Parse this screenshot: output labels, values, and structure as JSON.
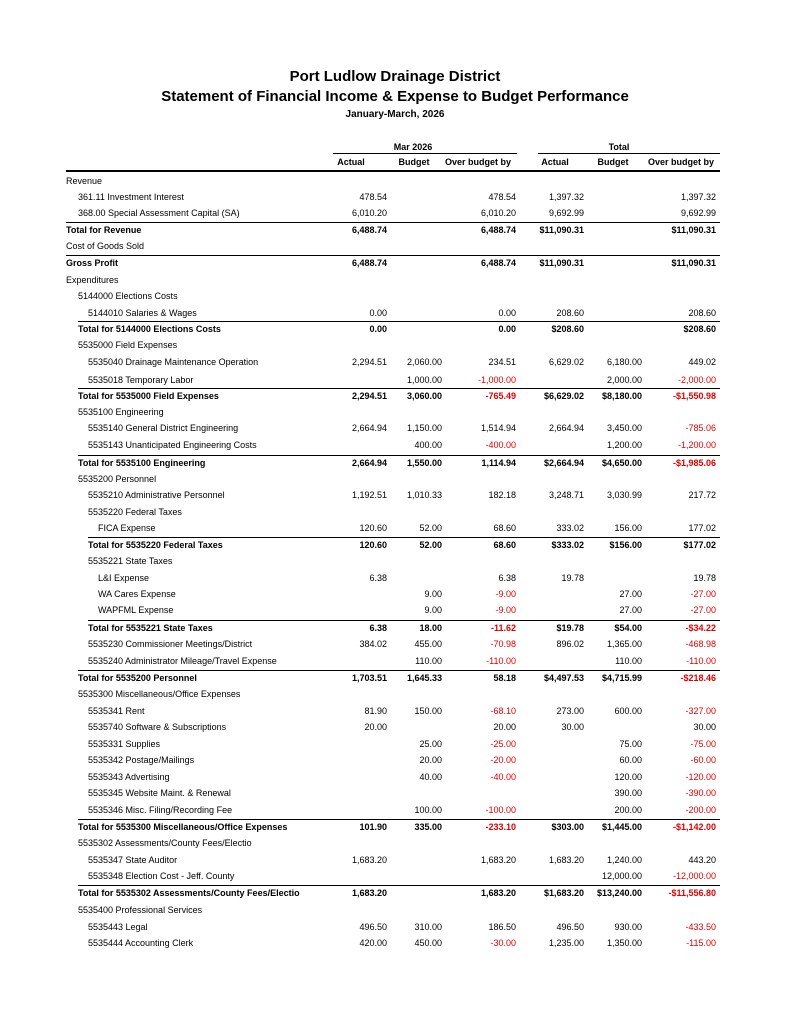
{
  "header": {
    "company": "Port Ludlow Drainage District",
    "title": "Statement of Financial Income & Expense to Budget Performance",
    "period": "January-March, 2026"
  },
  "table": {
    "column_groups": [
      "Mar 2026",
      "Total"
    ],
    "columns": [
      "Actual",
      "Budget",
      "Over budget by",
      "Actual",
      "Budget",
      "Over budget by"
    ],
    "rows": [
      {
        "label": "Revenue",
        "cells": [
          null,
          null,
          null,
          null,
          null,
          null
        ]
      },
      {
        "label": "361.11 Investment Interest",
        "cells": [
          "478.54",
          null,
          "478.54",
          "1,397.32",
          null,
          "1,397.32"
        ]
      },
      {
        "label": "368.00 Special Assessment Capital (SA)",
        "cells": [
          "6,010.20",
          null,
          "6,010.20",
          "9,692.99",
          null,
          "9,692.99"
        ]
      },
      {
        "label": "Total for Revenue",
        "cells": [
          "6,488.74",
          null,
          "6,488.74",
          "$11,090.31",
          null,
          "$11,090.31"
        ]
      },
      {
        "label": "Cost of Goods Sold",
        "cells": [
          null,
          null,
          null,
          null,
          null,
          null
        ]
      },
      {
        "label": "Gross Profit",
        "cells": [
          "6,488.74",
          null,
          "6,488.74",
          "$11,090.31",
          null,
          "$11,090.31"
        ]
      },
      {
        "label": "Expenditures",
        "cells": [
          null,
          null,
          null,
          null,
          null,
          null
        ]
      },
      {
        "label": "5144000 Elections Costs",
        "cells": [
          null,
          null,
          null,
          null,
          null,
          null
        ]
      },
      {
        "label": "5144010 Salaries & Wages",
        "cells": [
          "0.00",
          null,
          "0.00",
          "208.60",
          null,
          "208.60"
        ]
      },
      {
        "label": "Total for 5144000 Elections Costs",
        "cells": [
          "0.00",
          null,
          "0.00",
          "$208.60",
          null,
          "$208.60"
        ]
      },
      {
        "label": "5535000 Field Expenses",
        "cells": [
          null,
          null,
          null,
          null,
          null,
          null
        ]
      },
      {
        "label": "5535040 Drainage Maintenance Operation",
        "cells": [
          "2,294.51",
          "2,060.00",
          "234.51",
          "6,629.02",
          "6,180.00",
          "449.02"
        ]
      },
      {
        "label": "5535018 Temporary Labor",
        "cells": [
          null,
          "1,000.00",
          "-1,000.00",
          null,
          "2,000.00",
          "-2,000.00"
        ]
      },
      {
        "label": "Total for 5535000 Field Expenses",
        "cells": [
          "2,294.51",
          "3,060.00",
          "-765.49",
          "$6,629.02",
          "$8,180.00",
          "-$1,550.98"
        ]
      },
      {
        "label": "5535100 Engineering",
        "cells": [
          null,
          null,
          null,
          null,
          null,
          null
        ]
      },
      {
        "label": "5535140 General District Engineering",
        "cells": [
          "2,664.94",
          "1,150.00",
          "1,514.94",
          "2,664.94",
          "3,450.00",
          "-785.06"
        ]
      },
      {
        "label": "5535143 Unanticipated Engineering Costs",
        "cells": [
          null,
          "400.00",
          "-400.00",
          null,
          "1,200.00",
          "-1,200.00"
        ]
      },
      {
        "label": "Total for 5535100 Engineering",
        "cells": [
          "2,664.94",
          "1,550.00",
          "1,114.94",
          "$2,664.94",
          "$4,650.00",
          "-$1,985.06"
        ]
      },
      {
        "label": "5535200 Personnel",
        "cells": [
          null,
          null,
          null,
          null,
          null,
          null
        ]
      },
      {
        "label": "5535210 Administrative Personnel",
        "cells": [
          "1,192.51",
          "1,010.33",
          "182.18",
          "3,248.71",
          "3,030.99",
          "217.72"
        ]
      },
      {
        "label": "5535220 Federal Taxes",
        "cells": [
          null,
          null,
          null,
          null,
          null,
          null
        ]
      },
      {
        "label": "FICA Expense",
        "cells": [
          "120.60",
          "52.00",
          "68.60",
          "333.02",
          "156.00",
          "177.02"
        ]
      },
      {
        "label": "Total for 5535220 Federal Taxes",
        "cells": [
          "120.60",
          "52.00",
          "68.60",
          "$333.02",
          "$156.00",
          "$177.02"
        ]
      },
      {
        "label": "5535221 State Taxes",
        "cells": [
          null,
          null,
          null,
          null,
          null,
          null
        ]
      },
      {
        "label": "L&I Expense",
        "cells": [
          "6.38",
          null,
          "6.38",
          "19.78",
          null,
          "19.78"
        ]
      },
      {
        "label": "WA Cares Expense",
        "cells": [
          null,
          "9.00",
          "-9.00",
          null,
          "27.00",
          "-27.00"
        ]
      },
      {
        "label": "WAPFML Expense",
        "cells": [
          null,
          "9.00",
          "-9.00",
          null,
          "27.00",
          "-27.00"
        ]
      },
      {
        "label": "Total for 5535221 State Taxes",
        "cells": [
          "6.38",
          "18.00",
          "-11.62",
          "$19.78",
          "$54.00",
          "-$34.22"
        ]
      },
      {
        "label": "5535230 Commissioner Meetings/District",
        "cells": [
          "384.02",
          "455.00",
          "-70.98",
          "896.02",
          "1,365.00",
          "-468.98"
        ]
      },
      {
        "label": "5535240 Administrator Mileage/Travel Expense",
        "cells": [
          null,
          "110.00",
          "-110.00",
          null,
          "110.00",
          "-110.00"
        ]
      },
      {
        "label": "Total for 5535200 Personnel",
        "cells": [
          "1,703.51",
          "1,645.33",
          "58.18",
          "$4,497.53",
          "$4,715.99",
          "-$218.46"
        ]
      },
      {
        "label": "5535300 Miscellaneous/Office Expenses",
        "cells": [
          null,
          null,
          null,
          null,
          null,
          null
        ]
      },
      {
        "label": "5535341 Rent",
        "cells": [
          "81.90",
          "150.00",
          "-68.10",
          "273.00",
          "600.00",
          "-327.00"
        ]
      },
      {
        "label": "5535740 Software & Subscriptions",
        "cells": [
          "20.00",
          null,
          "20.00",
          "30.00",
          null,
          "30.00"
        ]
      },
      {
        "label": "5535331 Supplies",
        "cells": [
          null,
          "25.00",
          "-25.00",
          null,
          "75.00",
          "-75.00"
        ]
      },
      {
        "label": "5535342 Postage/Mailings",
        "cells": [
          null,
          "20.00",
          "-20.00",
          null,
          "60.00",
          "-60.00"
        ]
      },
      {
        "label": "5535343 Advertising",
        "cells": [
          null,
          "40.00",
          "-40.00",
          null,
          "120.00",
          "-120.00"
        ]
      },
      {
        "label": "5535345 Website Maint. & Renewal",
        "cells": [
          null,
          null,
          null,
          null,
          "390.00",
          "-390.00"
        ]
      },
      {
        "label": "5535346 Misc. Filing/Recording Fee",
        "cells": [
          null,
          "100.00",
          "-100.00",
          null,
          "200.00",
          "-200.00"
        ]
      },
      {
        "label": "Total for 5535300 Miscellaneous/Office Expenses",
        "cells": [
          "101.90",
          "335.00",
          "-233.10",
          "$303.00",
          "$1,445.00",
          "-$1,142.00"
        ]
      },
      {
        "label": "5535302 Assessments/County Fees/Electio",
        "cells": [
          null,
          null,
          null,
          null,
          null,
          null
        ]
      },
      {
        "label": "5535347 State Auditor",
        "cells": [
          "1,683.20",
          null,
          "1,683.20",
          "1,683.20",
          "1,240.00",
          "443.20"
        ]
      },
      {
        "label": "5535348 Election Cost - Jeff. County",
        "cells": [
          null,
          null,
          null,
          null,
          "12,000.00",
          "-12,000.00"
        ]
      },
      {
        "label": "Total for 5535302 Assessments/County Fees/Electio",
        "cells": [
          "1,683.20",
          null,
          "1,683.20",
          "$1,683.20",
          "$13,240.00",
          "-$11,556.80"
        ]
      },
      {
        "label": "5535400 Professional Services",
        "cells": [
          null,
          null,
          null,
          null,
          null,
          null
        ]
      },
      {
        "label": "5535443 Legal",
        "cells": [
          "496.50",
          "310.00",
          "186.50",
          "496.50",
          "930.00",
          "-433.50"
        ]
      },
      {
        "label": "5535444 Accounting Clerk",
        "cells": [
          "420.00",
          "450.00",
          "-30.00",
          "1,235.00",
          "1,350.00",
          "-115.00"
        ]
      }
    ]
  }
}
